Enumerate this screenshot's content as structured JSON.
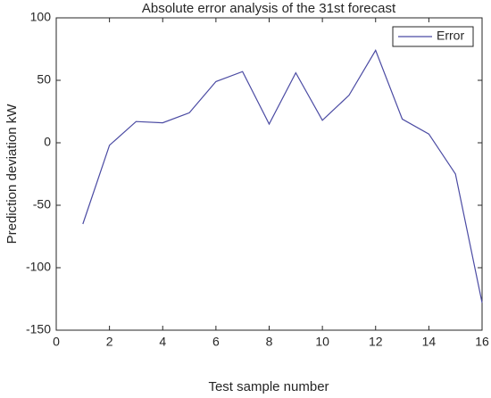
{
  "chart_data": {
    "type": "line",
    "title": "Absolute error analysis of the 31st forecast",
    "x_label": "Test sample number",
    "y_label": "Prediction deviation kW",
    "x": [
      1,
      2,
      3,
      4,
      5,
      6,
      7,
      8,
      9,
      10,
      11,
      12,
      13,
      14,
      15,
      16
    ],
    "series": [
      {
        "name": "Error",
        "color": "#4b4ba3",
        "values": [
          -65,
          -2,
          17,
          16,
          24,
          49,
          57,
          15,
          56,
          18,
          38,
          74,
          19,
          7,
          -25,
          -128
        ]
      }
    ],
    "xlim": [
      0,
      16
    ],
    "xticks": [
      0,
      2,
      4,
      6,
      8,
      10,
      12,
      14,
      16
    ],
    "ylim": [
      -150,
      100
    ],
    "yticks": [
      -150,
      -100,
      -50,
      0,
      50,
      100
    ],
    "legend": "upper right"
  }
}
